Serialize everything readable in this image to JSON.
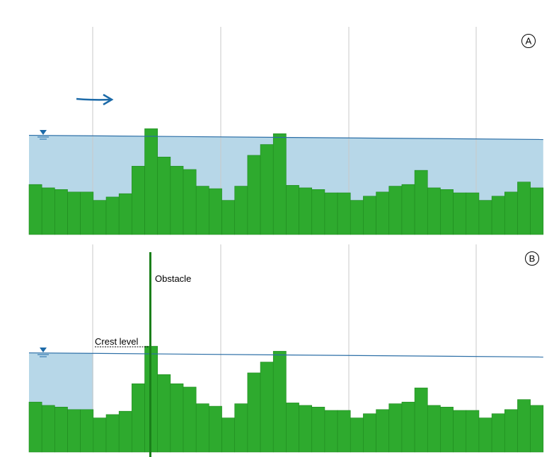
{
  "colors": {
    "bed": "#2eaa2e",
    "bed_edge": "#1f8a1f",
    "water_fill": "#b7d7e8",
    "water_line": "#2b6ea6",
    "gridline": "#c8c8c8",
    "obstacle": "#1a7f1a",
    "flow_arrow": "#1c6aa8"
  },
  "bed_profile_cells": [
    6,
    5.6,
    5.4,
    5.1,
    5.1,
    4.1,
    4.5,
    4.9,
    8.2,
    12.7,
    9.3,
    8.2,
    7.8,
    5.8,
    5.5,
    4.1,
    5.8,
    9.5,
    10.8,
    12.1,
    5.9,
    5.6,
    5.4,
    5.0,
    5.0,
    4.1,
    4.6,
    5.1,
    5.8,
    6.0,
    7.7,
    5.6,
    5.4,
    5.0,
    5.0,
    4.1,
    4.6,
    5.1,
    6.3,
    5.6
  ],
  "panels": [
    {
      "id": "A",
      "label": "A",
      "water_level_start": 11.9,
      "water_level_end": 11.4,
      "water_extent_cells": 40,
      "icons": [
        "water-level-triangle-icon",
        "flow-direction-arrow-icon"
      ]
    },
    {
      "id": "B",
      "label": "B",
      "water_level_start": 11.9,
      "water_level_end": 11.4,
      "water_extent_cells": 5,
      "obstacle_cell": 9,
      "annotations": {
        "obstacle": "Obstacle",
        "crest_level": "Crest level"
      },
      "icons": [
        "water-level-triangle-icon"
      ]
    }
  ]
}
